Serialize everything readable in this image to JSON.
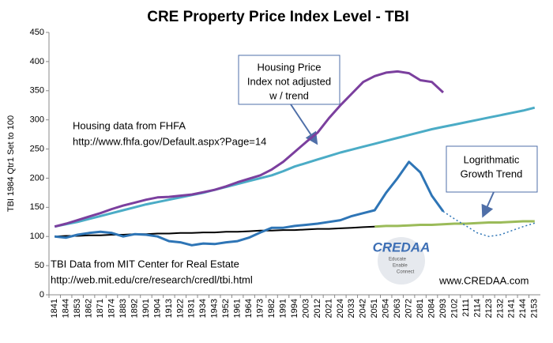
{
  "chart_data": {
    "type": "line",
    "title": "CRE Property Price Index Level - TBI",
    "y_label": "TBI 1984 Qtr1 Set to 100",
    "categories": [
      "1841",
      "1844",
      "1853",
      "1862",
      "1871",
      "1874",
      "1883",
      "1892",
      "1901",
      "1904",
      "1913",
      "1922",
      "1931",
      "1934",
      "1943",
      "1952",
      "1961",
      "1964",
      "1973",
      "1982",
      "1991",
      "1994",
      "2003",
      "2012",
      "2021",
      "2024",
      "2033",
      "2042",
      "2051",
      "2054",
      "2063",
      "2072",
      "2081",
      "2084",
      "2093",
      "2102",
      "2111",
      "2114",
      "2123",
      "2132",
      "2141",
      "2144",
      "2153"
    ],
    "ylim": [
      0,
      450
    ],
    "yticks": [
      0,
      50,
      100,
      150,
      200,
      250,
      300,
      350,
      400,
      450
    ],
    "grid": false,
    "series": [
      {
        "color": "#4bacc6",
        "width": 3,
        "values": [
          117,
          121,
          125,
          130,
          135,
          140,
          145,
          150,
          155,
          159,
          163,
          167,
          171,
          175,
          180,
          185,
          190,
          195,
          200,
          205,
          212,
          220,
          226,
          232,
          238,
          244,
          249,
          254,
          259,
          264,
          269,
          274,
          279,
          284,
          288,
          292,
          296,
          300,
          304,
          308,
          312,
          316,
          321
        ]
      },
      {
        "color": "#7b3f9e",
        "width": 3,
        "values": [
          117,
          122,
          128,
          134,
          140,
          147,
          153,
          158,
          163,
          167,
          168,
          170,
          172,
          176,
          180,
          186,
          193,
          199,
          205,
          215,
          228,
          245,
          262,
          278,
          303,
          325,
          345,
          365,
          375,
          381,
          383,
          380,
          368,
          365,
          347,
          null,
          null,
          null,
          null,
          null,
          null,
          null,
          null
        ]
      },
      {
        "color": "#9bbb59",
        "width": 3,
        "values": [
          null,
          null,
          null,
          null,
          null,
          null,
          null,
          null,
          null,
          null,
          null,
          null,
          null,
          null,
          null,
          null,
          null,
          null,
          null,
          null,
          null,
          null,
          null,
          null,
          null,
          null,
          null,
          null,
          117,
          118,
          118,
          119,
          120,
          120,
          121,
          122,
          122,
          123,
          124,
          124,
          125,
          126,
          126
        ]
      },
      {
        "color": "#000000",
        "width": 2,
        "values": [
          100,
          101,
          101,
          102,
          102,
          103,
          103,
          104,
          104,
          105,
          105,
          106,
          106,
          107,
          107,
          108,
          108,
          109,
          110,
          110,
          111,
          111,
          112,
          113,
          113,
          114,
          115,
          116,
          117,
          null,
          null,
          null,
          null,
          null,
          null,
          null,
          null,
          null,
          null,
          null,
          null,
          null,
          null
        ]
      },
      {
        "color": "#2e75b6",
        "width": 3,
        "values": [
          100,
          98,
          103,
          106,
          108,
          106,
          100,
          104,
          103,
          100,
          92,
          90,
          85,
          88,
          87,
          90,
          92,
          98,
          107,
          115,
          115,
          118,
          120,
          122,
          125,
          128,
          135,
          140,
          145,
          175,
          200,
          228,
          210,
          170,
          143,
          null,
          null,
          null,
          null,
          null,
          null,
          null,
          null
        ]
      },
      {
        "color": "#2e75b6",
        "width": 1.5,
        "dash": "2,3",
        "values": [
          null,
          null,
          null,
          null,
          null,
          null,
          null,
          null,
          null,
          null,
          null,
          null,
          null,
          null,
          null,
          null,
          null,
          null,
          null,
          null,
          null,
          null,
          null,
          null,
          null,
          null,
          null,
          null,
          null,
          null,
          null,
          null,
          null,
          null,
          143,
          130,
          118,
          106,
          100,
          103,
          110,
          117,
          123
        ]
      }
    ],
    "annotations": [
      {
        "lines": [
          "Housing Price",
          "Index not adjusted",
          "w / trend"
        ]
      },
      {
        "lines": [
          "Logrithmatic",
          "Growth Trend"
        ]
      },
      {
        "lines": [
          "Housing data from FHFA",
          "http://www.fhfa.gov/Default.aspx?Page=14"
        ]
      },
      {
        "lines": [
          "TBI Data from MIT Center for Real Estate",
          "http://web.mit.edu/cre/research/credl/tbi.html"
        ]
      },
      {
        "lines": [
          "www.CREDAA.com"
        ]
      }
    ],
    "logo": {
      "name": "CREDAA",
      "tagline": [
        "Educate",
        "Enable",
        "Connect"
      ]
    }
  }
}
